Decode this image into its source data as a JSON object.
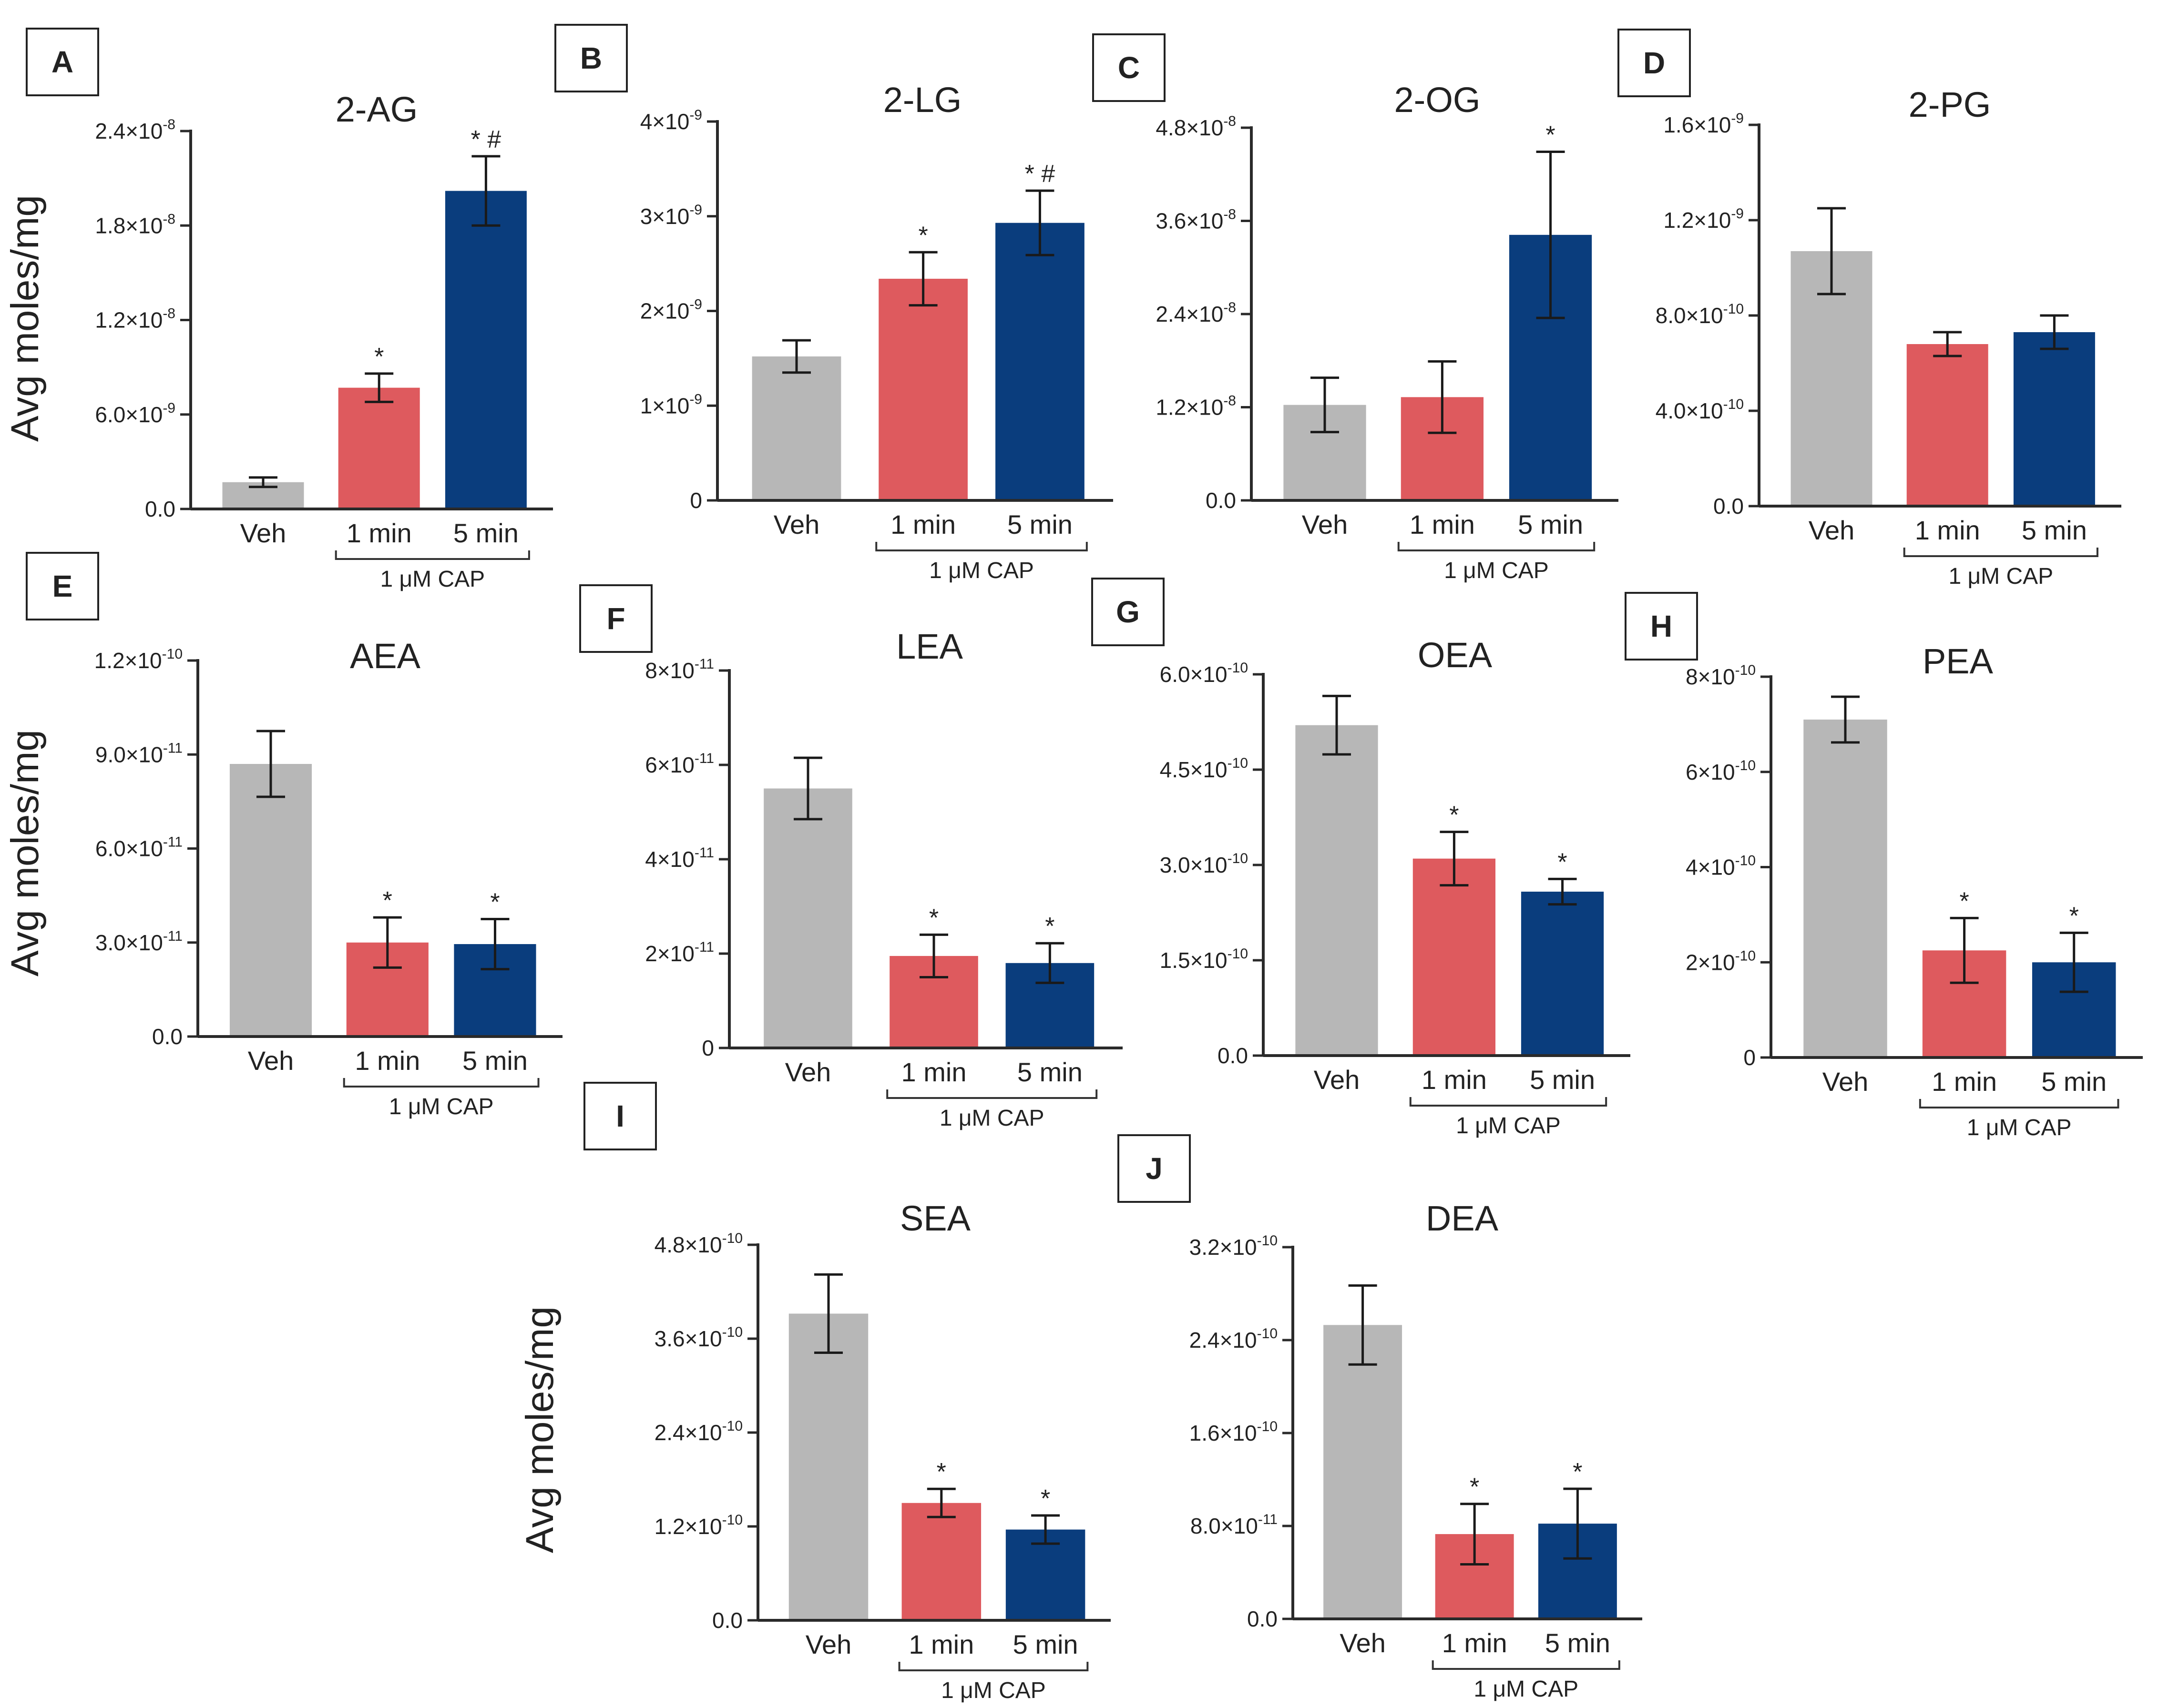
{
  "ylabel": "Avg moles/mg",
  "colors": {
    "veh": "#b7b7b7",
    "min1": "#de5a5e",
    "min5": "#0a3d7d"
  },
  "chart_data": [
    {
      "panel": "A",
      "title": "2-AG",
      "type": "bar",
      "categories": [
        "Veh",
        "1 min",
        "5 min"
      ],
      "group_label": "1 μM CAP",
      "ylim": [
        0,
        2.4e-08
      ],
      "yticks": [
        {
          "m": "0.0",
          "e": ""
        },
        {
          "m": "6.0×10",
          "e": "-9"
        },
        {
          "m": "1.2×10",
          "e": "-8"
        },
        {
          "m": "1.8×10",
          "e": "-8"
        },
        {
          "m": "2.4×10",
          "e": "-8"
        }
      ],
      "values": [
        1.7e-09,
        7.7e-09,
        2.02e-08
      ],
      "errors": [
        3e-10,
        9e-10,
        2.2e-09
      ],
      "sig": [
        "",
        "*",
        "* #"
      ]
    },
    {
      "panel": "B",
      "title": "2-LG",
      "type": "bar",
      "categories": [
        "Veh",
        "1 min",
        "5 min"
      ],
      "group_label": "1 μM CAP",
      "ylim": [
        0,
        4e-09
      ],
      "yticks": [
        {
          "m": "0",
          "e": ""
        },
        {
          "m": "1×10",
          "e": "-9"
        },
        {
          "m": "2×10",
          "e": "-9"
        },
        {
          "m": "3×10",
          "e": "-9"
        },
        {
          "m": "4×10",
          "e": "-9"
        }
      ],
      "values": [
        1.52e-09,
        2.34e-09,
        2.93e-09
      ],
      "errors": [
        1.7e-10,
        2.8e-10,
        3.4e-10
      ],
      "sig": [
        "",
        "*",
        "* #"
      ]
    },
    {
      "panel": "C",
      "title": "2-OG",
      "type": "bar",
      "categories": [
        "Veh",
        "1 min",
        "5 min"
      ],
      "group_label": "1 μM CAP",
      "ylim": [
        0,
        4.8e-08
      ],
      "yticks": [
        {
          "m": "0.0",
          "e": ""
        },
        {
          "m": "1.2×10",
          "e": "-8"
        },
        {
          "m": "2.4×10",
          "e": "-8"
        },
        {
          "m": "3.6×10",
          "e": "-8"
        },
        {
          "m": "4.8×10",
          "e": "-8"
        }
      ],
      "values": [
        1.23e-08,
        1.33e-08,
        3.42e-08
      ],
      "errors": [
        3.5e-09,
        4.6e-09,
        1.07e-08
      ],
      "sig": [
        "",
        "",
        "*"
      ]
    },
    {
      "panel": "D",
      "title": "2-PG",
      "type": "bar",
      "categories": [
        "Veh",
        "1 min",
        "5 min"
      ],
      "group_label": "1 μM CAP",
      "ylim": [
        0,
        1.6e-09
      ],
      "yticks": [
        {
          "m": "0.0",
          "e": ""
        },
        {
          "m": "4.0×10",
          "e": "-10"
        },
        {
          "m": "8.0×10",
          "e": "-10"
        },
        {
          "m": "1.2×10",
          "e": "-9"
        },
        {
          "m": "1.6×10",
          "e": "-9"
        }
      ],
      "values": [
        1.07e-09,
        6.8e-10,
        7.3e-10
      ],
      "errors": [
        1.8e-10,
        5e-11,
        7e-11
      ],
      "sig": [
        "",
        "",
        ""
      ]
    },
    {
      "panel": "E",
      "title": "AEA",
      "type": "bar",
      "categories": [
        "Veh",
        "1 min",
        "5 min"
      ],
      "group_label": "1 μM CAP",
      "ylim": [
        0,
        1.2e-10
      ],
      "yticks": [
        {
          "m": "0.0",
          "e": ""
        },
        {
          "m": "3.0×10",
          "e": "-11"
        },
        {
          "m": "6.0×10",
          "e": "-11"
        },
        {
          "m": "9.0×10",
          "e": "-11"
        },
        {
          "m": "1.2×10",
          "e": "-10"
        }
      ],
      "values": [
        8.7e-11,
        3e-11,
        2.95e-11
      ],
      "errors": [
        1.05e-11,
        8e-12,
        8e-12
      ],
      "sig": [
        "",
        "*",
        "*"
      ]
    },
    {
      "panel": "F",
      "title": "LEA",
      "type": "bar",
      "categories": [
        "Veh",
        "1 min",
        "5 min"
      ],
      "group_label": "1 μM CAP",
      "ylim": [
        0,
        8e-11
      ],
      "yticks": [
        {
          "m": "0",
          "e": ""
        },
        {
          "m": "2×10",
          "e": "-11"
        },
        {
          "m": "4×10",
          "e": "-11"
        },
        {
          "m": "6×10",
          "e": "-11"
        },
        {
          "m": "8×10",
          "e": "-11"
        }
      ],
      "values": [
        5.5e-11,
        1.95e-11,
        1.8e-11
      ],
      "errors": [
        6.5e-12,
        4.5e-12,
        4.2e-12
      ],
      "sig": [
        "",
        "*",
        "*"
      ]
    },
    {
      "panel": "G",
      "title": "OEA",
      "type": "bar",
      "categories": [
        "Veh",
        "1 min",
        "5 min"
      ],
      "group_label": "1 μM CAP",
      "ylim": [
        0,
        6e-10
      ],
      "yticks": [
        {
          "m": "0.0",
          "e": ""
        },
        {
          "m": "1.5×10",
          "e": "-10"
        },
        {
          "m": "3.0×10",
          "e": "-10"
        },
        {
          "m": "4.5×10",
          "e": "-10"
        },
        {
          "m": "6.0×10",
          "e": "-10"
        }
      ],
      "values": [
        5.2e-10,
        3.1e-10,
        2.58e-10
      ],
      "errors": [
        4.6e-11,
        4.2e-11,
        2e-11
      ],
      "sig": [
        "",
        "*",
        "*"
      ]
    },
    {
      "panel": "H",
      "title": "PEA",
      "type": "bar",
      "categories": [
        "Veh",
        "1 min",
        "5 min"
      ],
      "group_label": "1 μM CAP",
      "ylim": [
        0,
        8e-10
      ],
      "yticks": [
        {
          "m": "0",
          "e": ""
        },
        {
          "m": "2×10",
          "e": "-10"
        },
        {
          "m": "4×10",
          "e": "-10"
        },
        {
          "m": "6×10",
          "e": "-10"
        },
        {
          "m": "8×10",
          "e": "-10"
        }
      ],
      "values": [
        7.1e-10,
        2.25e-10,
        2e-10
      ],
      "errors": [
        4.8e-11,
        6.8e-11,
        6.2e-11
      ],
      "sig": [
        "",
        "*",
        "*"
      ]
    },
    {
      "panel": "I",
      "title": "SEA",
      "type": "bar",
      "categories": [
        "Veh",
        "1 min",
        "5 min"
      ],
      "group_label": "1 μM CAP",
      "ylim": [
        0,
        4.8e-10
      ],
      "yticks": [
        {
          "m": "0.0",
          "e": ""
        },
        {
          "m": "1.2×10",
          "e": "-10"
        },
        {
          "m": "2.4×10",
          "e": "-10"
        },
        {
          "m": "3.6×10",
          "e": "-10"
        },
        {
          "m": "4.8×10",
          "e": "-10"
        }
      ],
      "values": [
        3.92e-10,
        1.5e-10,
        1.16e-10
      ],
      "errors": [
        5e-11,
        1.8e-11,
        1.8e-11
      ],
      "sig": [
        "",
        "*",
        "*"
      ]
    },
    {
      "panel": "J",
      "title": "DEA",
      "type": "bar",
      "categories": [
        "Veh",
        "1 min",
        "5 min"
      ],
      "group_label": "1 μM CAP",
      "ylim": [
        0,
        3.2e-10
      ],
      "yticks": [
        {
          "m": "0.0",
          "e": ""
        },
        {
          "m": "8.0×10",
          "e": "-11"
        },
        {
          "m": "1.6×10",
          "e": "-10"
        },
        {
          "m": "2.4×10",
          "e": "-10"
        },
        {
          "m": "3.2×10",
          "e": "-10"
        }
      ],
      "values": [
        2.53e-10,
        7.3e-11,
        8.2e-11
      ],
      "errors": [
        3.4e-11,
        2.6e-11,
        3e-11
      ],
      "sig": [
        "",
        "*",
        "*"
      ]
    }
  ]
}
